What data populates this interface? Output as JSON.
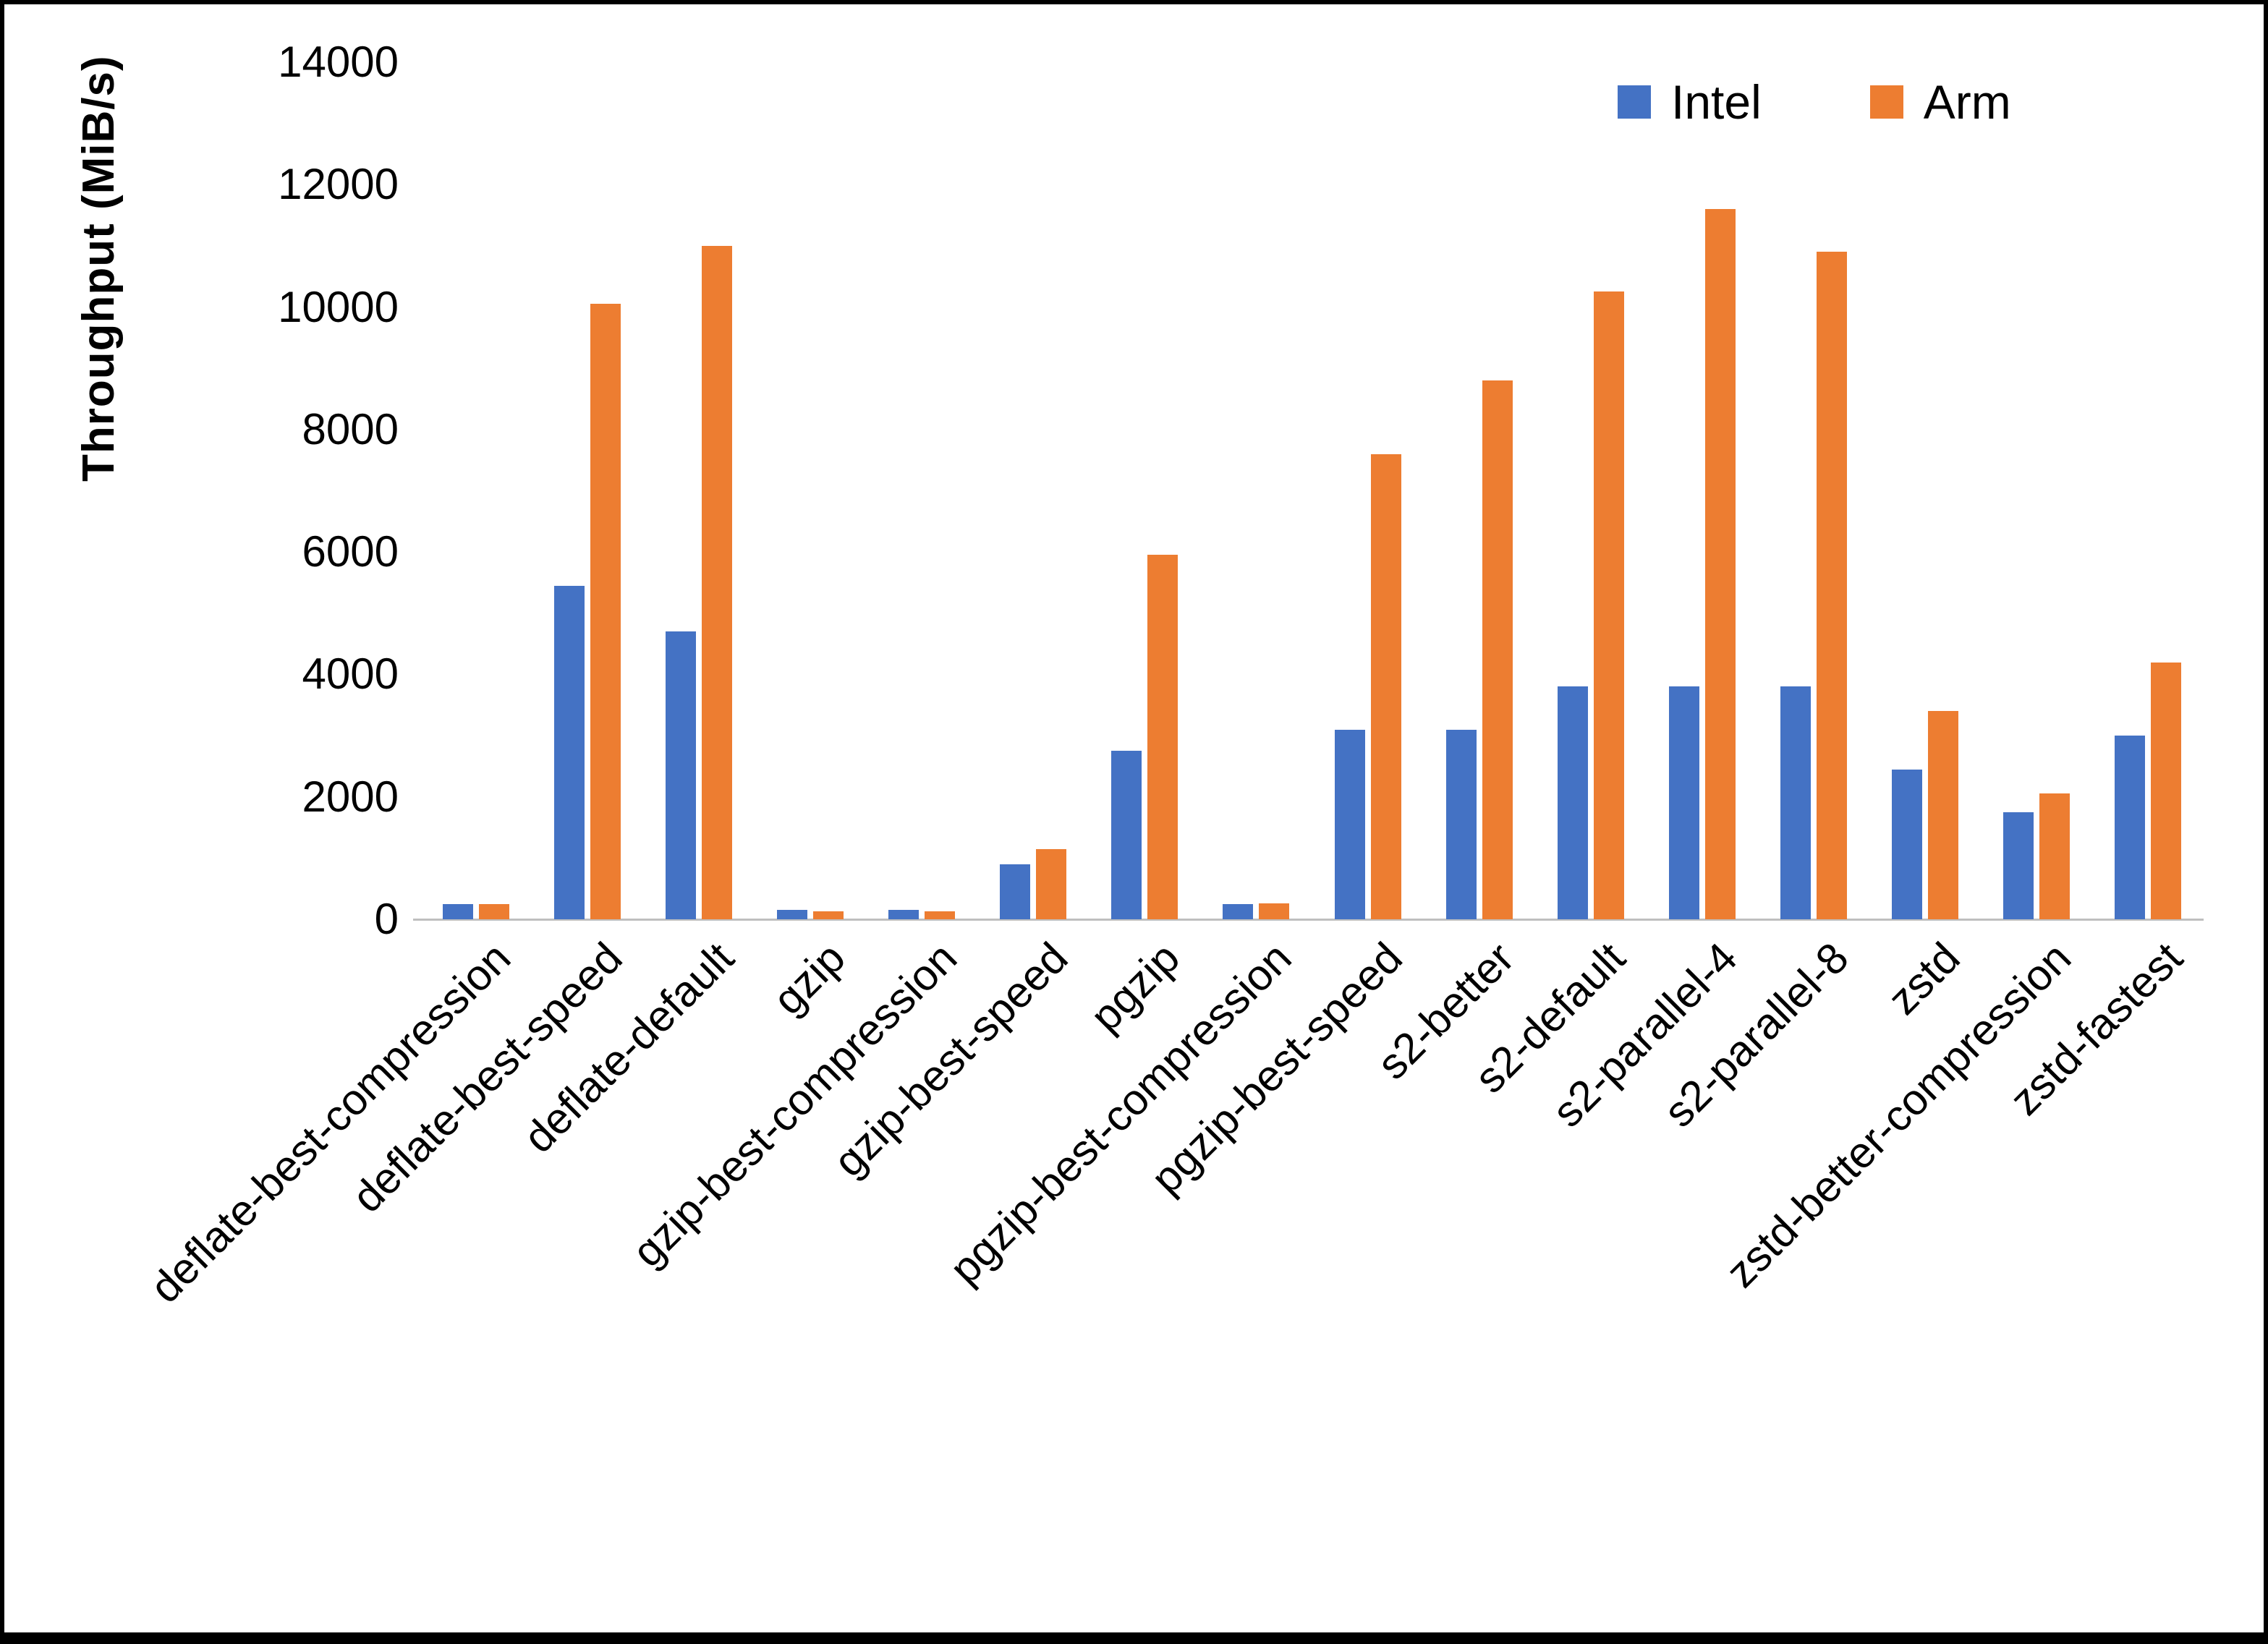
{
  "chart_data": {
    "type": "bar",
    "title": "",
    "xlabel": "",
    "ylabel": "Throughput (MiB/s)",
    "ylim": [
      0,
      14000
    ],
    "ytick_step": 2000,
    "grid": false,
    "legend_position": "top-right",
    "categories": [
      "deflate-best-compression",
      "deflate-best-speed",
      "deflate-default",
      "gzip",
      "gzip-best-compression",
      "gzip-best-speed",
      "pgzip",
      "pgzip-best-compression",
      "pgzip-best-speed",
      "s2-better",
      "s2-default",
      "s2-parallel-4",
      "s2-parallel-8",
      "zstd",
      "zstd-better-compression",
      "zstd-fastest"
    ],
    "series": [
      {
        "name": "Intel",
        "color": "#4472C4",
        "values": [
          250,
          5450,
          4700,
          150,
          150,
          900,
          2750,
          250,
          3100,
          3100,
          3800,
          3800,
          3800,
          2450,
          1750,
          3000
        ]
      },
      {
        "name": "Arm",
        "color": "#ED7D31",
        "values": [
          250,
          10050,
          11000,
          130,
          130,
          1150,
          5950,
          260,
          7600,
          8800,
          10250,
          11600,
          10900,
          3400,
          2050,
          4200
        ]
      }
    ]
  },
  "colors": {
    "axis_line": "#BFBFBF",
    "text": "#000000",
    "background": "#FFFFFF",
    "border": "#000000"
  }
}
